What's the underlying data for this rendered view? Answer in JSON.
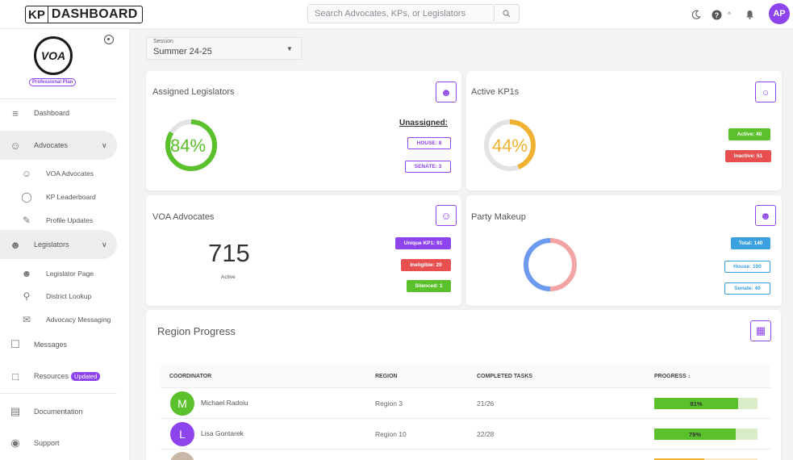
{
  "app": {
    "logo_kp": "KP",
    "logo_text": "DASHBOARD",
    "brand_color": "#8e44ec"
  },
  "search": {
    "placeholder": "Search Advocates, KPs, or Legislators"
  },
  "user": {
    "initials": "AP"
  },
  "sidebar": {
    "org_logo_text": "VOA",
    "plan_badge": "Professional Plan",
    "items": [
      {
        "label": "Dashboard",
        "icon": "list-check-icon"
      },
      {
        "label": "Advocates",
        "icon": "people-icon",
        "expanded": true
      },
      {
        "label": "VOA Advocates",
        "icon": "people-icon",
        "sub": true
      },
      {
        "label": "KP Leaderboard",
        "icon": "medal-icon",
        "sub": true
      },
      {
        "label": "Profile Updates",
        "icon": "user-edit-icon",
        "sub": true
      },
      {
        "label": "Legislators",
        "icon": "person-icon",
        "expanded": true
      },
      {
        "label": "Legislator Page",
        "icon": "person-icon",
        "sub": true
      },
      {
        "label": "District Lookup",
        "icon": "map-search-icon",
        "sub": true
      },
      {
        "label": "Advocacy Messaging",
        "icon": "message-icon",
        "sub": true
      },
      {
        "label": "Messages",
        "icon": "chat-icon"
      },
      {
        "label": "Resources",
        "icon": "folder-icon",
        "badge": "Updated"
      },
      {
        "label": "Documentation",
        "icon": "document-icon"
      },
      {
        "label": "Support",
        "icon": "lifebuoy-icon"
      }
    ]
  },
  "session": {
    "caption": "Session",
    "value": "Summer 24-25"
  },
  "cards": {
    "assigned_legislators": {
      "title": "Assigned Legislators",
      "percent": 84,
      "percent_label": "84%",
      "color": "#5ac02b",
      "unassigned_label": "Unassigned:",
      "house_label": "HOUSE: 8",
      "senate_label": "SENATE: 3"
    },
    "active_kp1s": {
      "title": "Active KP1s",
      "percent": 44,
      "percent_label": "44%",
      "color": "#f0b030",
      "active_label": "Active: 40",
      "inactive_label": "Inactive: 51"
    },
    "voa_advocates": {
      "title": "VOA Advocates",
      "count": "715",
      "count_label": "Active",
      "unique_label": "Unique KP1: 91",
      "ineligible_label": "Ineligible: 20",
      "silenced_label": "Silenced: 1"
    },
    "party_makeup": {
      "title": "Party Makeup",
      "blue_fraction": 0.5,
      "total_label": "Total: 140",
      "house_label": "House: 100",
      "senate_label": "Senate: 40"
    }
  },
  "region_progress": {
    "title": "Region Progress",
    "columns": [
      "COORDINATOR",
      "REGION",
      "COMPLETED TASKS",
      "PROGRESS ↓"
    ],
    "rows": [
      {
        "initial": "M",
        "name": "Michael Radoiu",
        "region": "Region 3",
        "tasks": "21/26",
        "progress": 81,
        "progress_label": "81%",
        "color": "#5ac02b"
      },
      {
        "initial": "L",
        "name": "Lisa Gontarek",
        "region": "Region 10",
        "tasks": "22/28",
        "progress": 79,
        "progress_label": "79%",
        "color": "#5ac02b"
      }
    ]
  }
}
